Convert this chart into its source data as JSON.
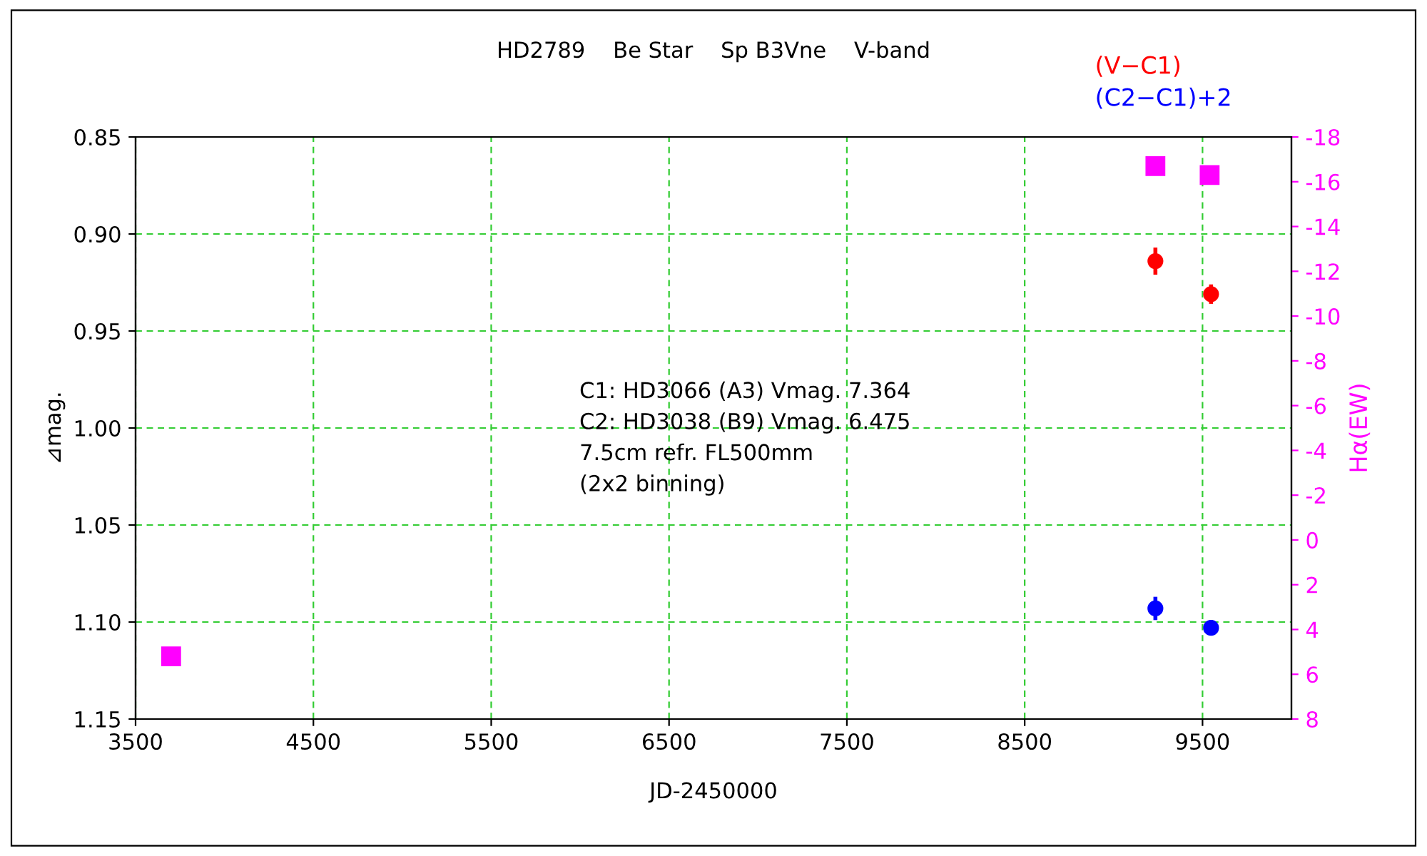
{
  "chart_data": {
    "type": "scatter",
    "title": "HD2789    Be Star    Sp B3Vne    V-band",
    "xlabel": "JD-2450000",
    "ylabel": "⊿mag.",
    "y2label": "Hα(EW)",
    "annotations": [
      "C1: HD3066 (A3) Vmag. 7.364\nC2: HD3038 (B9) Vmag. 6.475\n7.5cm refr. FL500mm\n(2x2 binning)"
    ],
    "series": [
      {
        "name": "(V−C1)",
        "color": "#ff0000",
        "x": [
          9235,
          9548
        ],
        "values": [
          0.914,
          0.931
        ],
        "errors": [
          0.007,
          0.005
        ],
        "marker": "circle"
      },
      {
        "name": "(C2−C1)+2",
        "color": "#0000ff",
        "x": [
          9235,
          9548
        ],
        "values": [
          1.093,
          1.103
        ],
        "errors": [
          0.006,
          0.004
        ],
        "marker": "circle"
      },
      {
        "color": "#ff00ff",
        "x": [
          3700,
          9235,
          9540
        ],
        "values": [
          5.2,
          -16.7,
          -16.3
        ],
        "axis": "y2",
        "marker": "square"
      }
    ],
    "xlim": [
      3500,
      10000
    ],
    "xticks": [
      3500,
      4500,
      5500,
      6500,
      7500,
      8500,
      9500
    ],
    "ylim": [
      1.15,
      0.85
    ],
    "yticks": [
      {
        "value": 0.85,
        "label": "0.85"
      },
      {
        "value": 0.9,
        "label": "0.90"
      },
      {
        "value": 0.95,
        "label": "0.95"
      },
      {
        "value": 1.0,
        "label": "1.00"
      },
      {
        "value": 1.05,
        "label": "1.05"
      },
      {
        "value": 1.1,
        "label": "1.10"
      },
      {
        "value": 1.15,
        "label": "1.15"
      }
    ],
    "y2lim": [
      8,
      -18
    ],
    "y2ticks": [
      -18,
      -16,
      -14,
      -12,
      -10,
      -8,
      -6,
      -4,
      -2,
      0,
      2,
      4,
      6,
      8
    ],
    "grid": true,
    "legend": "top right"
  }
}
